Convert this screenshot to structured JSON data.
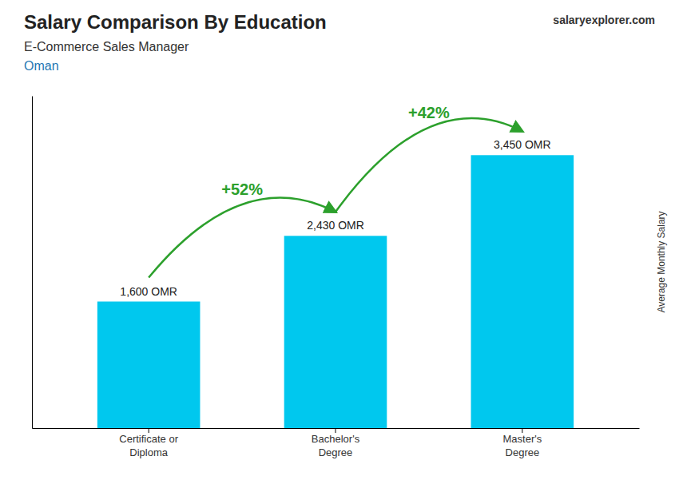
{
  "chart_data": {
    "type": "bar",
    "title": "Salary Comparison By Education",
    "subtitle": "E-Commerce Sales Manager",
    "caption": "Oman",
    "source": "salaryexplorer.com",
    "y_label": "Average Monthly Salary",
    "categories": [
      "Certificate or\nDiploma",
      "Bachelor's\nDegree",
      "Master's\nDegree"
    ],
    "values": [
      1600,
      2430,
      3450
    ],
    "value_labels": [
      "1,600 OMR",
      "2,430 OMR",
      "3,450 OMR"
    ],
    "annotations": [
      "+52%",
      "+42%"
    ],
    "color": "#00c8ee",
    "ylim": [
      0,
      4200
    ],
    "grid": false,
    "data_labels": true,
    "tick_labels": "x"
  }
}
